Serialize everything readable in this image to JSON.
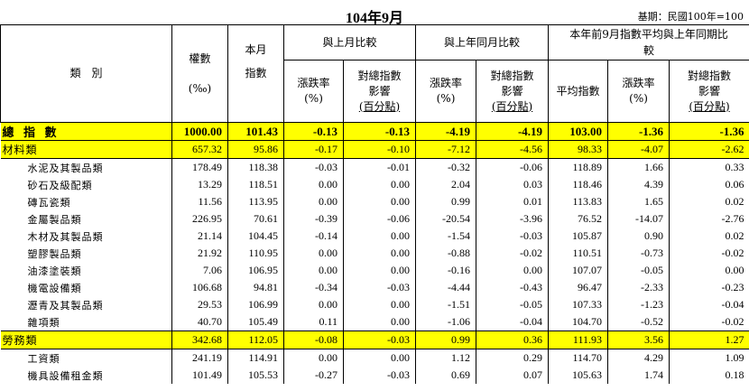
{
  "title": "104年9月",
  "basis": "基期：民國100年=100",
  "headers": {
    "category": "類　別",
    "weight": "權數",
    "weight_unit": "(‰)",
    "month_index": "本月指數",
    "vs_last_month": "與上月比較",
    "vs_same_month_last_year": "與上年同月比較",
    "ytd_compare": "本年前9月指數平均與上年同期比較",
    "change_rate": "漲跌率",
    "pct": "(%)",
    "impact": "對總指數影響",
    "impact_unit": "(百分點)",
    "avg_index": "平均指數"
  },
  "rows": [
    {
      "name": "總 指 數",
      "type": "total",
      "w": "1000.00",
      "idx": "101.43",
      "m_rate": "-0.13",
      "m_imp": "-0.13",
      "y_rate": "-4.19",
      "y_imp": "-4.19",
      "avg": "103.00",
      "a_rate": "-1.36",
      "a_imp": "-1.36"
    },
    {
      "name": "材料類",
      "type": "group",
      "w": "657.32",
      "idx": "95.86",
      "m_rate": "-0.17",
      "m_imp": "-0.10",
      "y_rate": "-7.12",
      "y_imp": "-4.56",
      "avg": "98.33",
      "a_rate": "-4.07",
      "a_imp": "-2.62"
    },
    {
      "name": "水泥及其製品類",
      "type": "item",
      "w": "178.49",
      "idx": "118.38",
      "m_rate": "-0.03",
      "m_imp": "-0.01",
      "y_rate": "-0.32",
      "y_imp": "-0.06",
      "avg": "118.89",
      "a_rate": "1.66",
      "a_imp": "0.33"
    },
    {
      "name": "砂石及級配類",
      "type": "item",
      "w": "13.29",
      "idx": "118.51",
      "m_rate": "0.00",
      "m_imp": "0.00",
      "y_rate": "2.04",
      "y_imp": "0.03",
      "avg": "118.46",
      "a_rate": "4.39",
      "a_imp": "0.06"
    },
    {
      "name": "磚瓦瓷類",
      "type": "item",
      "w": "11.56",
      "idx": "113.95",
      "m_rate": "0.00",
      "m_imp": "0.00",
      "y_rate": "0.99",
      "y_imp": "0.01",
      "avg": "113.83",
      "a_rate": "1.65",
      "a_imp": "0.02"
    },
    {
      "name": "金屬製品類",
      "type": "item",
      "w": "226.95",
      "idx": "70.61",
      "m_rate": "-0.39",
      "m_imp": "-0.06",
      "y_rate": "-20.54",
      "y_imp": "-3.96",
      "avg": "76.52",
      "a_rate": "-14.07",
      "a_imp": "-2.76"
    },
    {
      "name": "木材及其製品類",
      "type": "item",
      "w": "21.14",
      "idx": "104.45",
      "m_rate": "-0.14",
      "m_imp": "0.00",
      "y_rate": "-1.54",
      "y_imp": "-0.03",
      "avg": "105.87",
      "a_rate": "0.90",
      "a_imp": "0.02"
    },
    {
      "name": "塑膠製品類",
      "type": "item",
      "w": "21.92",
      "idx": "110.95",
      "m_rate": "0.00",
      "m_imp": "0.00",
      "y_rate": "-0.88",
      "y_imp": "-0.02",
      "avg": "110.51",
      "a_rate": "-0.73",
      "a_imp": "-0.02"
    },
    {
      "name": "油漆塗裝類",
      "type": "item",
      "w": "7.06",
      "idx": "106.95",
      "m_rate": "0.00",
      "m_imp": "0.00",
      "y_rate": "-0.16",
      "y_imp": "0.00",
      "avg": "107.07",
      "a_rate": "-0.05",
      "a_imp": "0.00"
    },
    {
      "name": "機電設備類",
      "type": "item",
      "w": "106.68",
      "idx": "94.81",
      "m_rate": "-0.34",
      "m_imp": "-0.03",
      "y_rate": "-4.44",
      "y_imp": "-0.43",
      "avg": "96.47",
      "a_rate": "-2.33",
      "a_imp": "-0.23"
    },
    {
      "name": "瀝青及其製品類",
      "type": "item",
      "w": "29.53",
      "idx": "106.99",
      "m_rate": "0.00",
      "m_imp": "0.00",
      "y_rate": "-1.51",
      "y_imp": "-0.05",
      "avg": "107.33",
      "a_rate": "-1.23",
      "a_imp": "-0.04"
    },
    {
      "name": "雜項類",
      "type": "item",
      "w": "40.70",
      "idx": "105.49",
      "m_rate": "0.11",
      "m_imp": "0.00",
      "y_rate": "-1.06",
      "y_imp": "-0.04",
      "avg": "104.70",
      "a_rate": "-0.52",
      "a_imp": "-0.02"
    },
    {
      "name": "勞務類",
      "type": "group",
      "w": "342.68",
      "idx": "112.05",
      "m_rate": "-0.08",
      "m_imp": "-0.03",
      "y_rate": "0.99",
      "y_imp": "0.36",
      "avg": "111.93",
      "a_rate": "3.56",
      "a_imp": "1.27"
    },
    {
      "name": "工資類",
      "type": "item",
      "w": "241.19",
      "idx": "114.91",
      "m_rate": "0.00",
      "m_imp": "0.00",
      "y_rate": "1.12",
      "y_imp": "0.29",
      "avg": "114.70",
      "a_rate": "4.29",
      "a_imp": "1.09"
    },
    {
      "name": "機具設備租金類",
      "type": "item",
      "w": "101.49",
      "idx": "105.53",
      "m_rate": "-0.27",
      "m_imp": "-0.03",
      "y_rate": "0.69",
      "y_imp": "0.07",
      "avg": "105.63",
      "a_rate": "1.74",
      "a_imp": "0.18"
    }
  ]
}
